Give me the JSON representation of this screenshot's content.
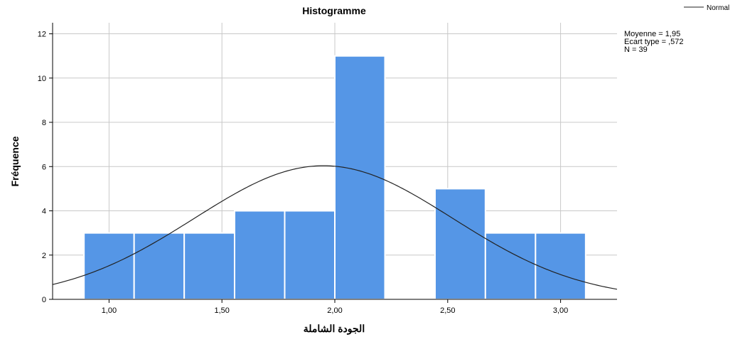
{
  "chart_data": {
    "type": "bar",
    "title": "Histogramme",
    "xlabel": "الجودة الشاملة",
    "ylabel": "Fréquence",
    "bin_width": 0.222,
    "bins": [
      {
        "x_start": 0.889,
        "x_end": 1.111,
        "count": 3
      },
      {
        "x_start": 1.111,
        "x_end": 1.333,
        "count": 3
      },
      {
        "x_start": 1.333,
        "x_end": 1.556,
        "count": 3
      },
      {
        "x_start": 1.556,
        "x_end": 1.778,
        "count": 4
      },
      {
        "x_start": 1.778,
        "x_end": 2.0,
        "count": 4
      },
      {
        "x_start": 2.0,
        "x_end": 2.222,
        "count": 11
      },
      {
        "x_start": 2.222,
        "x_end": 2.444,
        "count": 0
      },
      {
        "x_start": 2.444,
        "x_end": 2.667,
        "count": 5
      },
      {
        "x_start": 2.667,
        "x_end": 2.889,
        "count": 3
      },
      {
        "x_start": 2.889,
        "x_end": 3.111,
        "count": 3
      }
    ],
    "xlim": [
      0.75,
      3.25
    ],
    "ylim": [
      0,
      12.5
    ],
    "x_ticks": [
      1.0,
      1.5,
      2.0,
      2.5,
      3.0
    ],
    "x_tick_labels": [
      "1,00",
      "1,50",
      "2,00",
      "2,50",
      "3,00"
    ],
    "y_ticks": [
      0,
      2,
      4,
      6,
      8,
      10,
      12
    ],
    "y_tick_labels": [
      "0",
      "2",
      "4",
      "6",
      "8",
      "10",
      "12"
    ],
    "grid": true,
    "bar_color": "#5596e6",
    "curve_color": "#222222",
    "normal_curve": {
      "mean": 1.95,
      "std": 0.572,
      "n": 39
    },
    "stats": [
      "Moyenne = 1,95",
      "Ecart type = ,572",
      "N = 39"
    ],
    "legend": {
      "label": "Normal",
      "position": "top-right"
    }
  }
}
